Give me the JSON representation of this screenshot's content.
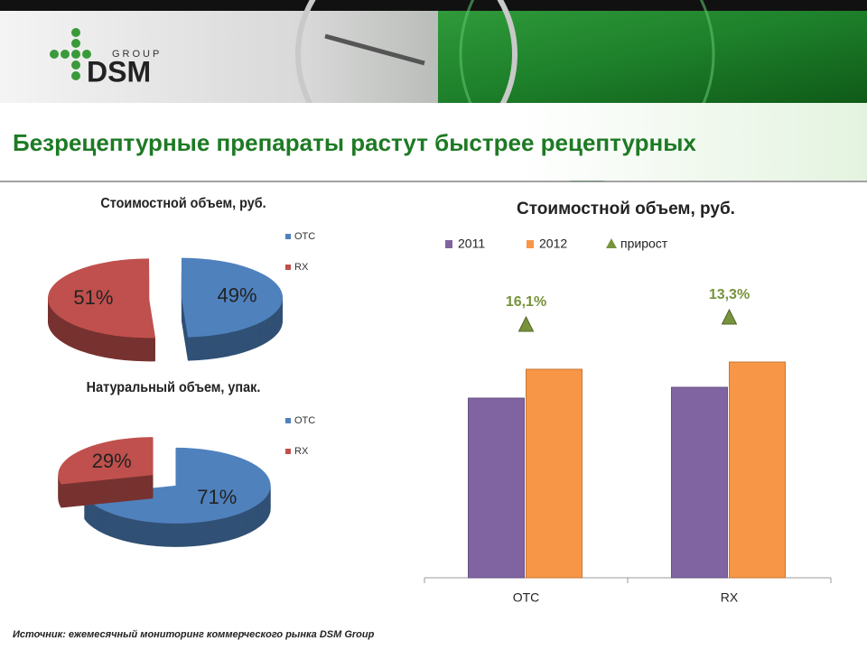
{
  "slide": {
    "logo_group": "GROUP",
    "logo_name": "DSM",
    "title": "Безрецептурные препараты растут быстрее рецептурных",
    "source": "Источник: ежемесячный мониторинг коммерческого рынка DSM Group"
  },
  "chart_data": [
    {
      "type": "pie",
      "title": "Стоимостной объем, руб.",
      "categories": [
        "OTC",
        "RX"
      ],
      "values": [
        49,
        51
      ],
      "value_labels": [
        "49%",
        "51%"
      ],
      "colors": [
        "#4f81bd",
        "#c0504d"
      ],
      "legend": "right"
    },
    {
      "type": "pie",
      "title": "Натуральный объем, упак.",
      "categories": [
        "OTC",
        "RX"
      ],
      "values": [
        71,
        29
      ],
      "value_labels": [
        "71%",
        "29%"
      ],
      "colors": [
        "#4f81bd",
        "#c0504d"
      ],
      "legend": "right"
    },
    {
      "type": "bar",
      "title": "Стоимостной объем, руб.",
      "categories": [
        "OTC",
        "RX"
      ],
      "series": [
        {
          "name": "2011",
          "color": "#8064a2",
          "values": [
            199,
            211
          ]
        },
        {
          "name": "2012",
          "color": "#f79646",
          "values": [
            231,
            239
          ]
        },
        {
          "name": "прирост",
          "color": "#77933c",
          "values": [
            16.1,
            13.3
          ],
          "value_labels": [
            "16,1%",
            "13,3%"
          ],
          "marker": "triangle"
        }
      ],
      "ylim": [
        0,
        380
      ],
      "legend": "top"
    }
  ]
}
